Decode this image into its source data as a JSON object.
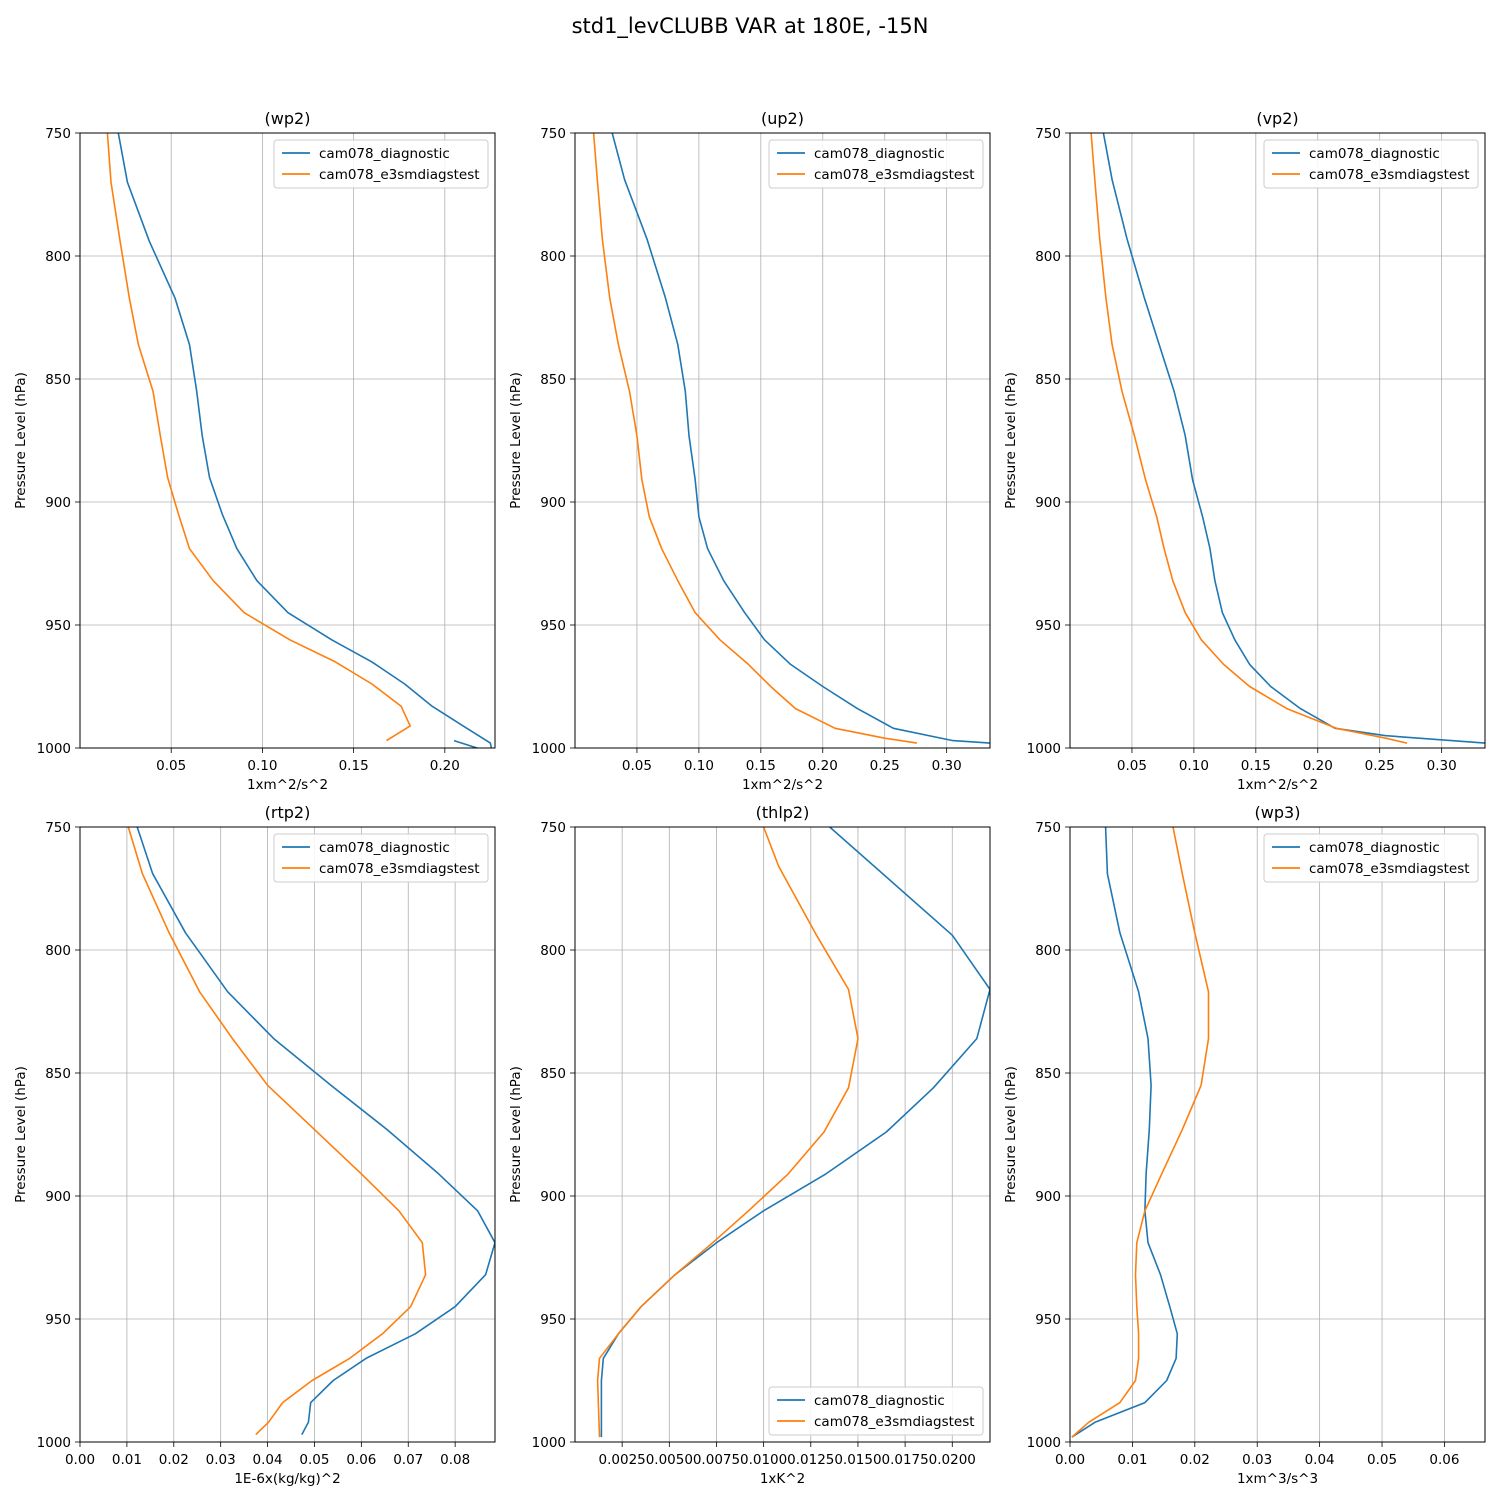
{
  "figure_title": "std1_levCLUBB VAR at 180E, -15N",
  "colors": {
    "series0": "#1f77b4",
    "series1": "#ff7f0e",
    "grid": "#b0b0b0",
    "axis": "#000000"
  },
  "chart_data": [
    {
      "type": "line",
      "title": "(wp2)",
      "xlabel": "1xm^2/s^2",
      "ylabel": "Pressure Level (hPa)",
      "xlim": [
        0.0,
        0.2275
      ],
      "ylim": [
        1000,
        750
      ],
      "y_inverted": true,
      "grid": true,
      "legend_position": "upper right",
      "xticks": [
        0.05,
        0.1,
        0.15,
        0.2
      ],
      "xtick_labels": [
        "0.05",
        "0.10",
        "0.15",
        "0.20"
      ],
      "yticks": [
        750,
        800,
        850,
        900,
        950,
        1000
      ],
      "ytick_labels": [
        "750",
        "800",
        "850",
        "900",
        "950",
        "1000"
      ],
      "series": [
        {
          "name": "cam078_diagnostic",
          "color": "#1f77b4",
          "x": [
            0.021,
            0.026,
            0.038,
            0.052,
            0.06,
            0.064,
            0.067,
            0.071,
            0.078,
            0.086,
            0.097,
            0.114,
            0.138,
            0.16,
            0.178,
            0.193,
            0.21,
            0.225,
            0.226,
            0.205
          ],
          "y": [
            750,
            770,
            794,
            817,
            836,
            855,
            873,
            890,
            905,
            919,
            932,
            945,
            956,
            965,
            974,
            983,
            991,
            998,
            1002,
            997
          ]
        },
        {
          "name": "cam078_e3smdiagstest",
          "color": "#ff7f0e",
          "x": [
            0.015,
            0.017,
            0.022,
            0.027,
            0.032,
            0.04,
            0.044,
            0.048,
            0.054,
            0.06,
            0.073,
            0.09,
            0.115,
            0.14,
            0.16,
            0.176,
            0.181,
            0.168
          ],
          "y": [
            750,
            770,
            794,
            817,
            836,
            855,
            873,
            890,
            905,
            919,
            932,
            945,
            956,
            965,
            974,
            983,
            991,
            997
          ]
        }
      ]
    },
    {
      "type": "line",
      "title": "(up2)",
      "xlabel": "1xm^2/s^2",
      "ylabel": "Pressure Level (hPa)",
      "xlim": [
        0.0,
        0.335
      ],
      "ylim": [
        1000,
        750
      ],
      "y_inverted": true,
      "grid": true,
      "legend_position": "upper right",
      "xticks": [
        0.05,
        0.1,
        0.15,
        0.2,
        0.25,
        0.3
      ],
      "xtick_labels": [
        "0.05",
        "0.10",
        "0.15",
        "0.20",
        "0.25",
        "0.30"
      ],
      "yticks": [
        750,
        800,
        850,
        900,
        950,
        1000
      ],
      "ytick_labels": [
        "750",
        "800",
        "850",
        "900",
        "950",
        "1000"
      ],
      "series": [
        {
          "name": "cam078_diagnostic",
          "color": "#1f77b4",
          "x": [
            0.03,
            0.04,
            0.058,
            0.073,
            0.083,
            0.089,
            0.092,
            0.097,
            0.1,
            0.107,
            0.12,
            0.137,
            0.153,
            0.174,
            0.2,
            0.228,
            0.257,
            0.305,
            0.335
          ],
          "y": [
            750,
            769,
            793,
            817,
            836,
            855,
            873,
            891,
            906,
            919,
            932,
            945,
            956,
            966,
            975,
            984,
            992,
            997,
            998
          ]
        },
        {
          "name": "cam078_e3smdiagstest",
          "color": "#ff7f0e",
          "x": [
            0.015,
            0.018,
            0.022,
            0.028,
            0.035,
            0.044,
            0.05,
            0.054,
            0.06,
            0.07,
            0.083,
            0.097,
            0.117,
            0.14,
            0.158,
            0.178,
            0.21,
            0.25,
            0.276
          ],
          "y": [
            750,
            769,
            793,
            817,
            836,
            855,
            873,
            891,
            906,
            919,
            932,
            945,
            956,
            966,
            975,
            984,
            992,
            996,
            998
          ]
        }
      ]
    },
    {
      "type": "line",
      "title": "(vp2)",
      "xlabel": "1xm^2/s^2",
      "ylabel": "Pressure Level (hPa)",
      "xlim": [
        0.0,
        0.335
      ],
      "ylim": [
        1000,
        750
      ],
      "y_inverted": true,
      "grid": true,
      "legend_position": "upper right",
      "xticks": [
        0.05,
        0.1,
        0.15,
        0.2,
        0.25,
        0.3
      ],
      "xtick_labels": [
        "0.05",
        "0.10",
        "0.15",
        "0.20",
        "0.25",
        "0.30"
      ],
      "yticks": [
        750,
        800,
        850,
        900,
        950,
        1000
      ],
      "ytick_labels": [
        "750",
        "800",
        "850",
        "900",
        "950",
        "1000"
      ],
      "series": [
        {
          "name": "cam078_diagnostic",
          "color": "#1f77b4",
          "x": [
            0.027,
            0.034,
            0.046,
            0.06,
            0.072,
            0.084,
            0.093,
            0.099,
            0.107,
            0.113,
            0.117,
            0.123,
            0.133,
            0.145,
            0.162,
            0.186,
            0.214,
            0.255,
            0.335
          ],
          "y": [
            750,
            769,
            793,
            817,
            836,
            855,
            873,
            891,
            906,
            919,
            932,
            945,
            956,
            966,
            975,
            984,
            992,
            995,
            998
          ]
        },
        {
          "name": "cam078_e3smdiagstest",
          "color": "#ff7f0e",
          "x": [
            0.017,
            0.02,
            0.024,
            0.029,
            0.034,
            0.042,
            0.052,
            0.061,
            0.07,
            0.076,
            0.083,
            0.093,
            0.106,
            0.124,
            0.145,
            0.175,
            0.215,
            0.255,
            0.272
          ],
          "y": [
            750,
            769,
            793,
            817,
            836,
            855,
            873,
            891,
            906,
            919,
            932,
            945,
            956,
            966,
            975,
            984,
            992,
            996,
            998
          ]
        }
      ]
    },
    {
      "type": "line",
      "title": "(rtp2)",
      "xlabel": "1E-6x(kg/kg)^2",
      "ylabel": "Pressure Level (hPa)",
      "xlim": [
        0.0,
        0.0885
      ],
      "ylim": [
        1000,
        750
      ],
      "y_inverted": true,
      "grid": true,
      "legend_position": "upper right",
      "xticks": [
        0.0,
        0.01,
        0.02,
        0.03,
        0.04,
        0.05,
        0.06,
        0.07,
        0.08
      ],
      "xtick_labels": [
        "0.00",
        "0.01",
        "0.02",
        "0.03",
        "0.04",
        "0.05",
        "0.06",
        "0.07",
        "0.08"
      ],
      "yticks": [
        750,
        800,
        850,
        900,
        950,
        1000
      ],
      "ytick_labels": [
        "750",
        "800",
        "850",
        "900",
        "950",
        "1000"
      ],
      "series": [
        {
          "name": "cam078_diagnostic",
          "color": "#1f77b4",
          "x": [
            0.0122,
            0.0155,
            0.0225,
            0.0315,
            0.0413,
            0.0535,
            0.0655,
            0.0765,
            0.0848,
            0.0885,
            0.0865,
            0.08,
            0.0715,
            0.061,
            0.054,
            0.0492,
            0.0487,
            0.0473
          ],
          "y": [
            750,
            769,
            793,
            817,
            836,
            855,
            873,
            891,
            906,
            919,
            932,
            945,
            956,
            966,
            975,
            984,
            992,
            997
          ]
        },
        {
          "name": "cam078_e3smdiagstest",
          "color": "#ff7f0e",
          "x": [
            0.0103,
            0.0133,
            0.019,
            0.0255,
            0.0325,
            0.04,
            0.05,
            0.06,
            0.068,
            0.073,
            0.0737,
            0.0705,
            0.0645,
            0.0575,
            0.0495,
            0.0432,
            0.0402,
            0.0375
          ],
          "y": [
            750,
            769,
            793,
            817,
            836,
            855,
            873,
            891,
            906,
            919,
            932,
            945,
            956,
            966,
            975,
            984,
            992,
            997
          ]
        }
      ]
    },
    {
      "type": "line",
      "title": "(thlp2)",
      "xlabel": "1xK^2",
      "ylabel": "Pressure Level (hPa)",
      "xlim": [
        0.0,
        0.022
      ],
      "ylim": [
        1000,
        750
      ],
      "y_inverted": true,
      "grid": true,
      "legend_position": "lower right",
      "xticks": [
        0.0025,
        0.005,
        0.0075,
        0.01,
        0.0125,
        0.015,
        0.0175,
        0.02
      ],
      "xtick_labels": [
        "0.0025",
        "0.0050",
        "0.0075",
        "0.0100",
        "0.0125",
        "0.0150",
        "0.0175",
        "0.0200"
      ],
      "yticks": [
        750,
        800,
        850,
        900,
        950,
        1000
      ],
      "ytick_labels": [
        "750",
        "800",
        "850",
        "900",
        "950",
        "1000"
      ],
      "series": [
        {
          "name": "cam078_diagnostic",
          "color": "#1f77b4",
          "x": [
            0.0135,
            0.02,
            0.022,
            0.0213,
            0.019,
            0.0165,
            0.0133,
            0.01,
            0.0075,
            0.0053,
            0.0035,
            0.0023,
            0.0015,
            0.0014,
            0.0014
          ],
          "y": [
            750,
            794,
            816,
            836,
            856,
            874,
            891,
            906,
            919,
            932,
            945,
            956,
            966,
            975,
            998
          ]
        },
        {
          "name": "cam078_e3smdiagstest",
          "color": "#ff7f0e",
          "x": [
            0.01,
            0.0108,
            0.0128,
            0.0145,
            0.015,
            0.0145,
            0.0132,
            0.0113,
            0.0092,
            0.0073,
            0.0053,
            0.0035,
            0.0023,
            0.0013,
            0.0012,
            0.0013
          ],
          "y": [
            750,
            766,
            794,
            816,
            836,
            856,
            874,
            891,
            906,
            919,
            932,
            945,
            956,
            966,
            975,
            998
          ]
        }
      ]
    },
    {
      "type": "line",
      "title": "(wp3)",
      "xlabel": "1xm^3/s^3",
      "ylabel": "Pressure Level (hPa)",
      "xlim": [
        0.0,
        0.0665
      ],
      "ylim": [
        1000,
        750
      ],
      "y_inverted": true,
      "grid": true,
      "legend_position": "upper right",
      "xticks": [
        0.0,
        0.01,
        0.02,
        0.03,
        0.04,
        0.05,
        0.06
      ],
      "xtick_labels": [
        "0.00",
        "0.01",
        "0.02",
        "0.03",
        "0.04",
        "0.05",
        "0.06"
      ],
      "yticks": [
        750,
        800,
        850,
        900,
        950,
        1000
      ],
      "ytick_labels": [
        "750",
        "800",
        "850",
        "900",
        "950",
        "1000"
      ],
      "series": [
        {
          "name": "cam078_diagnostic",
          "color": "#1f77b4",
          "x": [
            0.0057,
            0.006,
            0.008,
            0.011,
            0.0125,
            0.013,
            0.0127,
            0.0122,
            0.012,
            0.0125,
            0.0145,
            0.016,
            0.0172,
            0.017,
            0.0155,
            0.012,
            0.004,
            0.0003
          ],
          "y": [
            750,
            769,
            793,
            817,
            836,
            855,
            873,
            891,
            906,
            919,
            932,
            945,
            956,
            966,
            975,
            984,
            992,
            998
          ]
        },
        {
          "name": "cam078_e3smdiagstest",
          "color": "#ff7f0e",
          "x": [
            0.0165,
            0.018,
            0.02,
            0.0222,
            0.0222,
            0.021,
            0.018,
            0.0147,
            0.012,
            0.0107,
            0.0105,
            0.0107,
            0.011,
            0.011,
            0.0105,
            0.008,
            0.003,
            0.0003
          ],
          "y": [
            750,
            769,
            793,
            817,
            836,
            855,
            873,
            891,
            906,
            919,
            932,
            945,
            956,
            966,
            975,
            984,
            992,
            998
          ]
        }
      ]
    }
  ]
}
